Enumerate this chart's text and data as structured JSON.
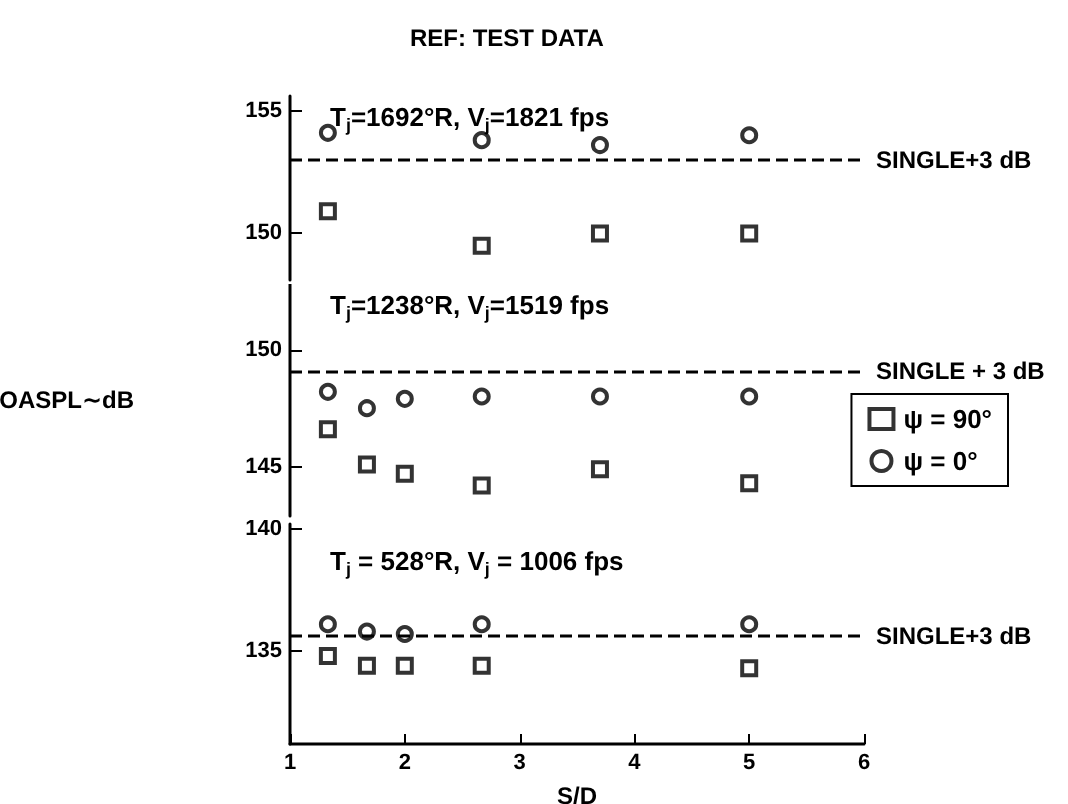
{
  "chart_data": [
    {
      "type": "scatter",
      "title": "REF: TEST DATA",
      "x": [
        1.33,
        2.67,
        3.7,
        5
      ],
      "series": [
        {
          "color": "#000000",
          "marker": "circle",
          "values": [
            154.1,
            153.8,
            153.6,
            154.0
          ]
        },
        {
          "color": "#000000",
          "marker": "square",
          "values": [
            150.9,
            149.5,
            150.0,
            150.0
          ]
        }
      ],
      "xlim": [
        1,
        6
      ],
      "ylim": [
        148.1,
        155.6
      ],
      "yticks": [
        150,
        155
      ],
      "tick_labels": "y",
      "ref_lines": [
        {
          "axis": "y",
          "value": 153,
          "label": "SINGLE+3 dB",
          "line_style": "dashed"
        }
      ],
      "annotations": [
        "T$_{j}$=1692°R, V$_{j}$=1821 fps"
      ],
      "grid": false,
      "legend": false
    },
    {
      "type": "scatter",
      "ylabel": "OASPL∼dB",
      "x": [
        1.33,
        1.67,
        2,
        2.67,
        3.7,
        5
      ],
      "series": [
        {
          "name": "ψ = 90°",
          "color": "#000000",
          "marker": "square",
          "values": [
            146.6,
            145.1,
            144.7,
            144.2,
            144.9,
            144.3
          ]
        },
        {
          "name": "ψ = 0°",
          "color": "#000000",
          "marker": "circle",
          "values": [
            148.2,
            147.5,
            147.9,
            148.0,
            148.0,
            148.0
          ]
        }
      ],
      "xlim": [
        1,
        6
      ],
      "ylim": [
        142.9,
        152.8
      ],
      "yticks": [
        145,
        150
      ],
      "tick_labels": "y",
      "ref_lines": [
        {
          "axis": "y",
          "value": 149.1,
          "label": "SINGLE + 3 dB",
          "line_style": "dashed"
        }
      ],
      "annotations": [
        "T$_{j}$=1238°R, V$_{j}$=1519 fps"
      ],
      "grid": false,
      "legend": "right"
    },
    {
      "type": "scatter",
      "xlabel": "S/D",
      "x": [
        1.33,
        1.67,
        2,
        2.67,
        5
      ],
      "series": [
        {
          "color": "#000000",
          "marker": "circle",
          "values": [
            136.1,
            135.8,
            135.7,
            136.1,
            136.1
          ]
        },
        {
          "color": "#000000",
          "marker": "square",
          "values": [
            134.8,
            134.4,
            134.4,
            134.4,
            134.3
          ]
        }
      ],
      "xlim": [
        1,
        6
      ],
      "xticks": [
        1,
        2,
        3,
        4,
        5,
        6
      ],
      "ylim": [
        131.2,
        140.2
      ],
      "yticks": [
        135,
        140
      ],
      "ref_lines": [
        {
          "axis": "y",
          "value": 135.6,
          "label": "SINGLE+3 dB",
          "line_style": "dashed"
        }
      ],
      "annotations": [
        "T$_{j}$ = 528°R, V$_{j}$ = 1006 fps"
      ],
      "grid": false,
      "legend": false
    }
  ]
}
